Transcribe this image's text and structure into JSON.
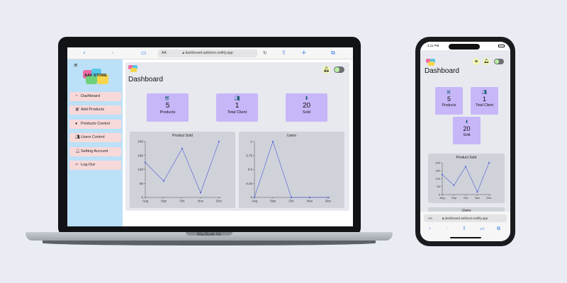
{
  "laptop": {
    "label": "MacBook Air",
    "browser": {
      "text_size": "AA",
      "url": "dashboard-aafstore.netlify.app",
      "icons": [
        "chevron-left-icon",
        "chevron-right-icon",
        "book-icon",
        "lock-icon",
        "refresh-icon",
        "share-icon",
        "plus-icon",
        "tabs-icon"
      ]
    },
    "sidebar": {
      "logo_text": "AAF STORE",
      "items": [
        {
          "label": "Dashboard",
          "icon": "dashboard-icon"
        },
        {
          "label": "Add Products",
          "icon": "cart-icon"
        },
        {
          "label": "Products Control",
          "icon": "circle-icon"
        },
        {
          "label": "Users Control",
          "icon": "users-icon"
        },
        {
          "label": "Setting Account",
          "icon": "user-gear-icon"
        },
        {
          "label": "Log-Out",
          "icon": "logout-icon"
        }
      ]
    },
    "page_title": "Dashboard",
    "cards": [
      {
        "value": "5",
        "label": "Products",
        "icon": "cart-icon"
      },
      {
        "value": "1",
        "label": "Total Client",
        "icon": "users-icon"
      },
      {
        "value": "20",
        "label": "Sold",
        "icon": "sold-icon"
      }
    ]
  },
  "phone": {
    "status_time": "3:11 PM",
    "page_title": "Dashboard",
    "cards": [
      {
        "value": "5",
        "label": "Products"
      },
      {
        "value": "1",
        "label": "Total Client"
      },
      {
        "value": "20",
        "label": "Sold"
      }
    ],
    "second_chart_title": "Users",
    "url_bar": {
      "text_size": "AA",
      "url": "dashboard-aafstore.netlify.app"
    }
  },
  "colors": {
    "card": "#c7b6f8",
    "sidebar": "#bbe0f7",
    "line": "#5b6ad8",
    "sidebar_item": "#f8d9da"
  },
  "chart_data": [
    {
      "type": "line",
      "title": "Product Sold",
      "categories": [
        "Aug",
        "Sep",
        "Oct",
        "Nov",
        "Dec"
      ],
      "values": [
        150,
        70,
        210,
        20,
        240
      ],
      "yticks": [
        "0",
        "60",
        "120",
        "180",
        "240"
      ],
      "ylim": [
        0,
        240
      ]
    },
    {
      "type": "line",
      "title": "Users",
      "categories": [
        "Aug",
        "Sep",
        "Oct",
        "Nov",
        "Dec"
      ],
      "values": [
        0,
        1,
        0,
        0,
        0
      ],
      "yticks": [
        "0",
        "0.25",
        "0.5",
        "0.75",
        "1"
      ],
      "ylim": [
        0,
        1
      ]
    }
  ]
}
